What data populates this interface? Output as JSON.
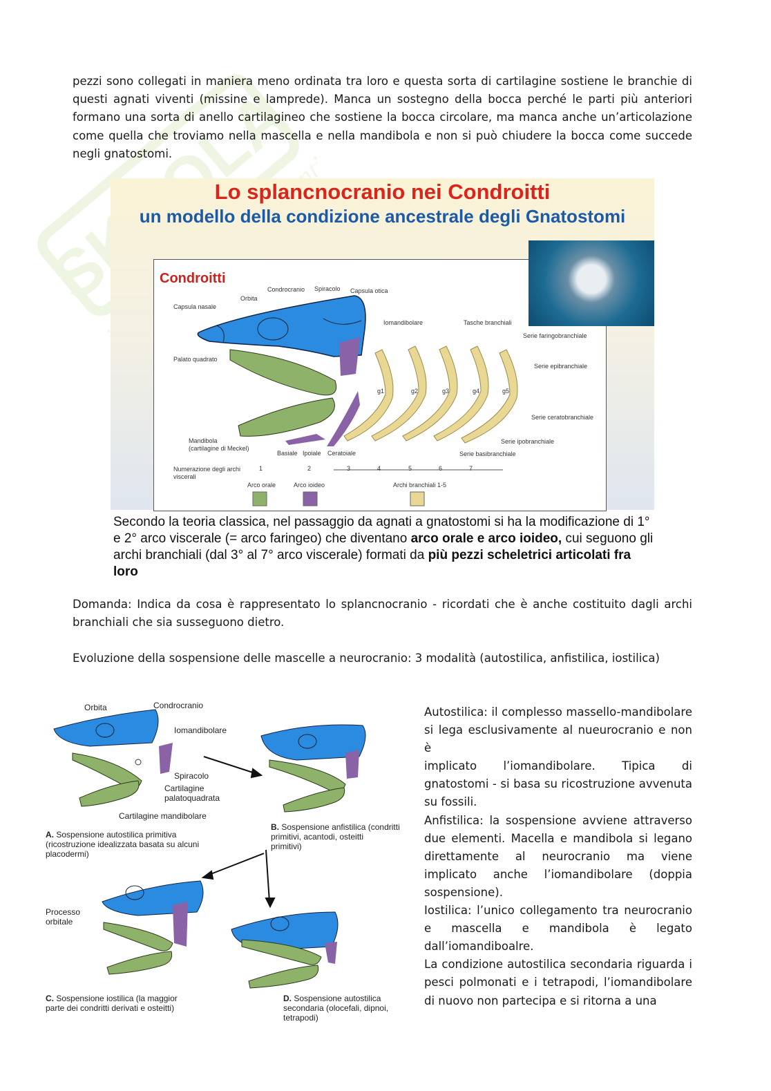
{
  "intro": [
    "pezzi sono collegati in maniera meno ordinata tra loro e questa sorta di cartilagine sostiene le branchie di",
    "questi agnati viventi (missine e lamprede). Manca un sostegno della bocca perché le parti più anteriori",
    "formano una sorta di anello cartilagineo che sostiene la bocca circolare, ma manca anche  un’articolazione",
    "come quella che troviamo nella mascella e nella mandibola e non si può chiudere la bocca come succede",
    "negli gnatostomi."
  ],
  "figure1": {
    "title": "Lo splancnocranio nei Condroitti",
    "subtitle": "un modello della condizione ancestrale degli Gnatostomi",
    "heading": "Condroitti",
    "labels": {
      "capsula_nasale": "Capsula nasale",
      "orbita": "Orbita",
      "condrocranio": "Condrocranio",
      "spiracolo": "Spiracolo",
      "capsula_otica": "Capsula otica",
      "iomandibolare": "Iomandibolare",
      "tasche": "Tasche branchiali",
      "faringo": "Serie faringobranchiale",
      "epi": "Serie epibranchiale",
      "cerato": "Serie ceratobranchiale",
      "ipo": "Serie ipobranchiale",
      "basi": "Serie basibranchiale",
      "palato": "Palato quadrato",
      "mandibola": "Mandibola",
      "meckel": "(cartilagine di Meckel)",
      "basiale": "Basiale",
      "ipoiale": "Ipoiale",
      "ceratoiale": "Ceratoiale",
      "numerazione": "Numerazione degli archi",
      "viscerali": "viscerali",
      "arco_orale": "Arco orale",
      "arco_ioideo": "Arco ioideo",
      "archi_branchiali": "Archi branchiali 1-5"
    },
    "gills": [
      "g1",
      "g2",
      "g3",
      "g4",
      "g5"
    ],
    "numbers": [
      "1",
      "2",
      "3",
      "4",
      "5",
      "6",
      "7"
    ],
    "colors": {
      "neurocranium": "#2b8be0",
      "oral": "#8fb26a",
      "hyoid": "#8a62a6",
      "branchial": "#e8d894",
      "title_red": "#d8261c",
      "title_blue": "#1a5aa8"
    }
  },
  "caption": {
    "t1": "Secondo la teoria classica, nel passaggio da agnati a gnatostomi si ha la modificazione di 1° e 2° arco viscerale (= arco faringeo) che diventano ",
    "b1": "arco orale e arco ioideo,",
    "t2": " cui seguono gli archi branchiali (dal 3° al 7° arco viscerale) formati da ",
    "b2": "più pezzi scheletrici articolati fra loro"
  },
  "domanda": [
    "Domanda: Indica da cosa è rappresentato lo splancnocranio - ricordati che è anche costituito dagli archi",
    "branchiali che sia susseguono dietro."
  ],
  "evoluzione": "Evoluzione della sospensione delle mascelle a neurocranio: 3 modalità (autostilica, anfistilica, iostilica)",
  "figure2": {
    "orbita": "Orbita",
    "condrocranio": "Condrocranio",
    "iomandibolare": "Iomandibolare",
    "spiracolo": "Spiracolo",
    "cartilagine_pq": "Cartilagine\npalatoquadrata",
    "cartilagine_mand": "Cartilagine mandibolare",
    "processo": "Processo\norbitale",
    "A_letter": "A.",
    "A": "Sospensione autostilica primitiva\n(ricostruzione idealizzata basata su alcuni\nplacodermi)",
    "B_letter": "B.",
    "B": "Sospensione anfistilica (condritti\nprimitivi, acantodi, osteitti\nprimitivi)",
    "C_letter": "C.",
    "C": "Sospensione iostilica (la maggior\nparte dei condritti derivati e osteitti)",
    "D_letter": "D.",
    "D": "Sospensione autostilica\nsecondaria (olocefali, dipnoi,\ntetrapodi)"
  },
  "right_text": [
    "Autostilica: il complesso massello-mandibolare",
    "si lega esclusivamente al nueurocranio e non è",
    "implicato l’iomandibolare. Tipica di",
    "gnatostomi - si basa su ricostruzione avvenuta",
    "su fossili.",
    "Anfistilica: la sospensione avviene attraverso",
    "due elementi. Macella e mandibola si legano",
    "direttamente al neurocranio ma viene",
    "implicato anche l’iomandibolare (doppia",
    "sospensione).",
    "Iostilica: l’unico collegamento tra neurocranio",
    "e mascella e mandibola è legato",
    "dall’iomandiboalre.",
    "La condizione autostilica secondaria riguarda i",
    "pesci polmonati e i tetrapodi, l’iomandibolare",
    "di nuovo non partecipa e si ritorna a una"
  ],
  "watermark": "Skuola.net il paradiso degli studenti"
}
